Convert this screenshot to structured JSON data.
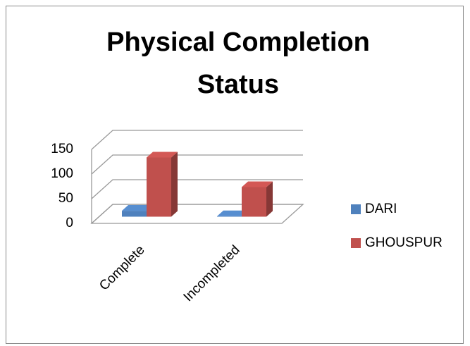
{
  "chart_data": {
    "type": "bar3d",
    "title": "Physical Completion Status",
    "categories": [
      "Complete",
      "Incompleted"
    ],
    "series": [
      {
        "name": "DARI",
        "color": "#4f81bd",
        "values": [
          12,
          1
        ]
      },
      {
        "name": "GHOUSPUR",
        "color": "#c0504d",
        "values": [
          120,
          60
        ]
      }
    ],
    "ylim": [
      0,
      150
    ],
    "yticks": [
      0,
      50,
      100,
      150
    ],
    "grid": true,
    "legend": "right"
  }
}
